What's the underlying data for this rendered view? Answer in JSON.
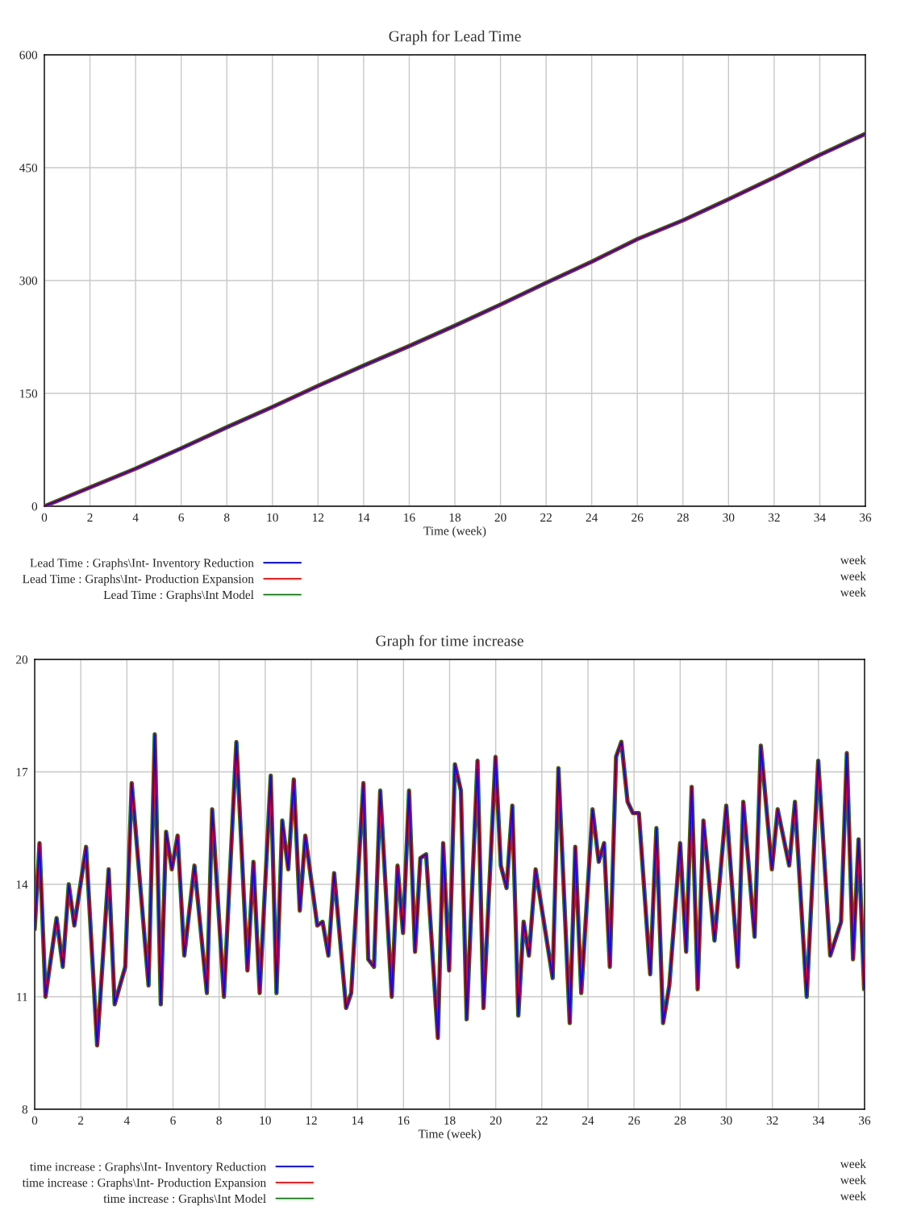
{
  "chart_data": [
    {
      "type": "line",
      "title": "Graph for Lead Time",
      "xlabel": "Time (week)",
      "x": [
        0,
        2,
        4,
        6,
        8,
        10,
        12,
        14,
        16,
        18,
        20,
        22,
        24,
        26,
        28,
        30,
        32,
        34,
        36
      ],
      "series": [
        {
          "name": "Lead Time : Graphs\\Int- Inventory Reduction",
          "color": "#0000ff",
          "values": [
            0,
            25,
            50,
            77,
            105,
            132,
            160,
            187,
            213,
            240,
            268,
            297,
            325,
            355,
            380,
            408,
            437,
            467,
            495
          ]
        },
        {
          "name": "Lead Time : Graphs\\Int- Production Expansion",
          "color": "#ff0000",
          "values": [
            0,
            25,
            50,
            77,
            105,
            132,
            160,
            187,
            213,
            240,
            268,
            297,
            325,
            355,
            380,
            408,
            437,
            467,
            495
          ]
        },
        {
          "name": "Lead Time : Graphs\\Int Model",
          "color": "#008000",
          "values": [
            0,
            25,
            50,
            77,
            105,
            132,
            160,
            187,
            213,
            240,
            268,
            297,
            325,
            355,
            380,
            408,
            437,
            467,
            495
          ]
        }
      ],
      "xlim": [
        0,
        36
      ],
      "xticks": [
        0,
        2,
        4,
        6,
        8,
        10,
        12,
        14,
        16,
        18,
        20,
        22,
        24,
        26,
        28,
        30,
        32,
        34,
        36
      ],
      "ylim": [
        0,
        600
      ],
      "yticks": [
        0,
        150,
        300,
        450,
        600
      ],
      "grid": true,
      "legend": "bottom",
      "annotations": [
        "week",
        "week",
        "week"
      ]
    },
    {
      "type": "line",
      "title": "Graph for time increase",
      "xlabel": "Time (week)",
      "x": [
        0,
        0.21,
        0.47,
        0.95,
        1.22,
        1.48,
        1.72,
        2.23,
        2.71,
        3.21,
        3.47,
        3.93,
        4.21,
        4.94,
        5.21,
        5.47,
        5.7,
        5.95,
        6.2,
        6.49,
        6.93,
        7.47,
        7.7,
        8.21,
        8.75,
        9.23,
        9.49,
        9.76,
        10.24,
        10.49,
        10.74,
        11.0,
        11.24,
        11.5,
        11.74,
        12.26,
        12.49,
        12.74,
        12.99,
        13.51,
        13.73,
        14.26,
        14.47,
        14.72,
        14.99,
        15.49,
        15.74,
        15.98,
        16.24,
        16.5,
        16.73,
        16.98,
        17.49,
        17.72,
        17.98,
        18.23,
        18.49,
        18.74,
        19.21,
        19.47,
        19.99,
        20.22,
        20.47,
        20.72,
        20.98,
        21.21,
        21.44,
        21.73,
        22.47,
        22.72,
        23.21,
        23.45,
        23.71,
        24.2,
        24.47,
        24.7,
        24.95,
        25.22,
        25.45,
        25.72,
        25.95,
        26.21,
        26.7,
        26.97,
        27.26,
        27.53,
        28.0,
        28.26,
        28.5,
        28.76,
        29.01,
        29.49,
        30.0,
        30.5,
        30.74,
        31.23,
        31.5,
        31.98,
        32.23,
        32.73,
        32.98,
        33.49,
        33.99,
        34.51,
        34.98,
        35.23,
        35.5,
        35.74,
        35.98
      ],
      "series": [
        {
          "name": "time increase : Graphs\\Int- Inventory Reduction",
          "color": "#0000ff",
          "values": [
            12.8,
            15.1,
            11.0,
            13.1,
            11.8,
            14.0,
            12.9,
            15.0,
            9.7,
            14.4,
            10.8,
            11.8,
            16.7,
            11.3,
            18.0,
            10.8,
            15.4,
            14.4,
            15.3,
            12.1,
            14.5,
            11.1,
            16.0,
            11.0,
            17.8,
            11.7,
            14.6,
            11.1,
            16.9,
            11.1,
            15.7,
            14.4,
            16.8,
            13.3,
            15.3,
            12.9,
            13.0,
            12.1,
            14.3,
            10.7,
            11.1,
            16.7,
            12.0,
            11.8,
            16.5,
            11.0,
            14.5,
            12.7,
            16.5,
            12.2,
            14.7,
            14.8,
            9.9,
            15.1,
            11.7,
            17.2,
            16.5,
            10.4,
            17.3,
            10.7,
            17.4,
            14.5,
            13.9,
            16.1,
            10.5,
            13.0,
            12.1,
            14.4,
            11.5,
            17.1,
            10.3,
            15.0,
            11.1,
            16.0,
            14.6,
            15.1,
            11.8,
            17.4,
            17.8,
            16.2,
            15.9,
            15.9,
            11.6,
            15.5,
            10.3,
            11.3,
            15.1,
            12.2,
            16.6,
            11.2,
            15.7,
            12.5,
            16.1,
            11.8,
            16.2,
            12.6,
            17.7,
            14.4,
            16.0,
            14.5,
            16.2,
            11.0,
            17.3,
            12.1,
            13.0,
            17.5,
            12.0,
            15.2,
            11.2
          ]
        },
        {
          "name": "time increase : Graphs\\Int- Production Expansion",
          "color": "#ff0000",
          "values": [
            12.8,
            15.1,
            11.0,
            13.1,
            11.8,
            14.0,
            12.9,
            15.0,
            9.7,
            14.4,
            10.8,
            11.8,
            16.7,
            11.3,
            18.0,
            10.8,
            15.4,
            14.4,
            15.3,
            12.1,
            14.5,
            11.1,
            16.0,
            11.0,
            17.8,
            11.7,
            14.6,
            11.1,
            16.9,
            11.1,
            15.7,
            14.4,
            16.8,
            13.3,
            15.3,
            12.9,
            13.0,
            12.1,
            14.3,
            10.7,
            11.1,
            16.7,
            12.0,
            11.8,
            16.5,
            11.0,
            14.5,
            12.7,
            16.5,
            12.2,
            14.7,
            14.8,
            9.9,
            15.1,
            11.7,
            17.2,
            16.5,
            10.4,
            17.3,
            10.7,
            17.4,
            14.5,
            13.9,
            16.1,
            10.5,
            13.0,
            12.1,
            14.4,
            11.5,
            17.1,
            10.3,
            15.0,
            11.1,
            16.0,
            14.6,
            15.1,
            11.8,
            17.4,
            17.8,
            16.2,
            15.9,
            15.9,
            11.6,
            15.5,
            10.3,
            11.3,
            15.1,
            12.2,
            16.6,
            11.2,
            15.7,
            12.5,
            16.1,
            11.8,
            16.2,
            12.6,
            17.7,
            14.4,
            16.0,
            14.5,
            16.2,
            11.0,
            17.3,
            12.1,
            13.0,
            17.5,
            12.0,
            15.2,
            11.2
          ]
        },
        {
          "name": "time increase : Graphs\\Int Model",
          "color": "#008000",
          "values": [
            12.8,
            15.1,
            11.0,
            13.1,
            11.8,
            14.0,
            12.9,
            15.0,
            9.7,
            14.4,
            10.8,
            11.8,
            16.7,
            11.3,
            18.0,
            10.8,
            15.4,
            14.4,
            15.3,
            12.1,
            14.5,
            11.1,
            16.0,
            11.0,
            17.8,
            11.7,
            14.6,
            11.1,
            16.9,
            11.1,
            15.7,
            14.4,
            16.8,
            13.3,
            15.3,
            12.9,
            13.0,
            12.1,
            14.3,
            10.7,
            11.1,
            16.7,
            12.0,
            11.8,
            16.5,
            11.0,
            14.5,
            12.7,
            16.5,
            12.2,
            14.7,
            14.8,
            9.9,
            15.1,
            11.7,
            17.2,
            16.5,
            10.4,
            17.3,
            10.7,
            17.4,
            14.5,
            13.9,
            16.1,
            10.5,
            13.0,
            12.1,
            14.4,
            11.5,
            17.1,
            10.3,
            15.0,
            11.1,
            16.0,
            14.6,
            15.1,
            11.8,
            17.4,
            17.8,
            16.2,
            15.9,
            15.9,
            11.6,
            15.5,
            10.3,
            11.3,
            15.1,
            12.2,
            16.6,
            11.2,
            15.7,
            12.5,
            16.1,
            11.8,
            16.2,
            12.6,
            17.7,
            14.4,
            16.0,
            14.5,
            16.2,
            11.0,
            17.3,
            12.1,
            13.0,
            17.5,
            12.0,
            15.2,
            11.2
          ]
        }
      ],
      "xlim": [
        0,
        36
      ],
      "xticks": [
        0,
        2,
        4,
        6,
        8,
        10,
        12,
        14,
        16,
        18,
        20,
        22,
        24,
        26,
        28,
        30,
        32,
        34,
        36
      ],
      "ylim": [
        8,
        20
      ],
      "yticks": [
        8,
        11,
        14,
        17,
        20
      ],
      "grid": true,
      "legend": "bottom",
      "annotations": [
        "week",
        "week",
        "week"
      ]
    }
  ]
}
